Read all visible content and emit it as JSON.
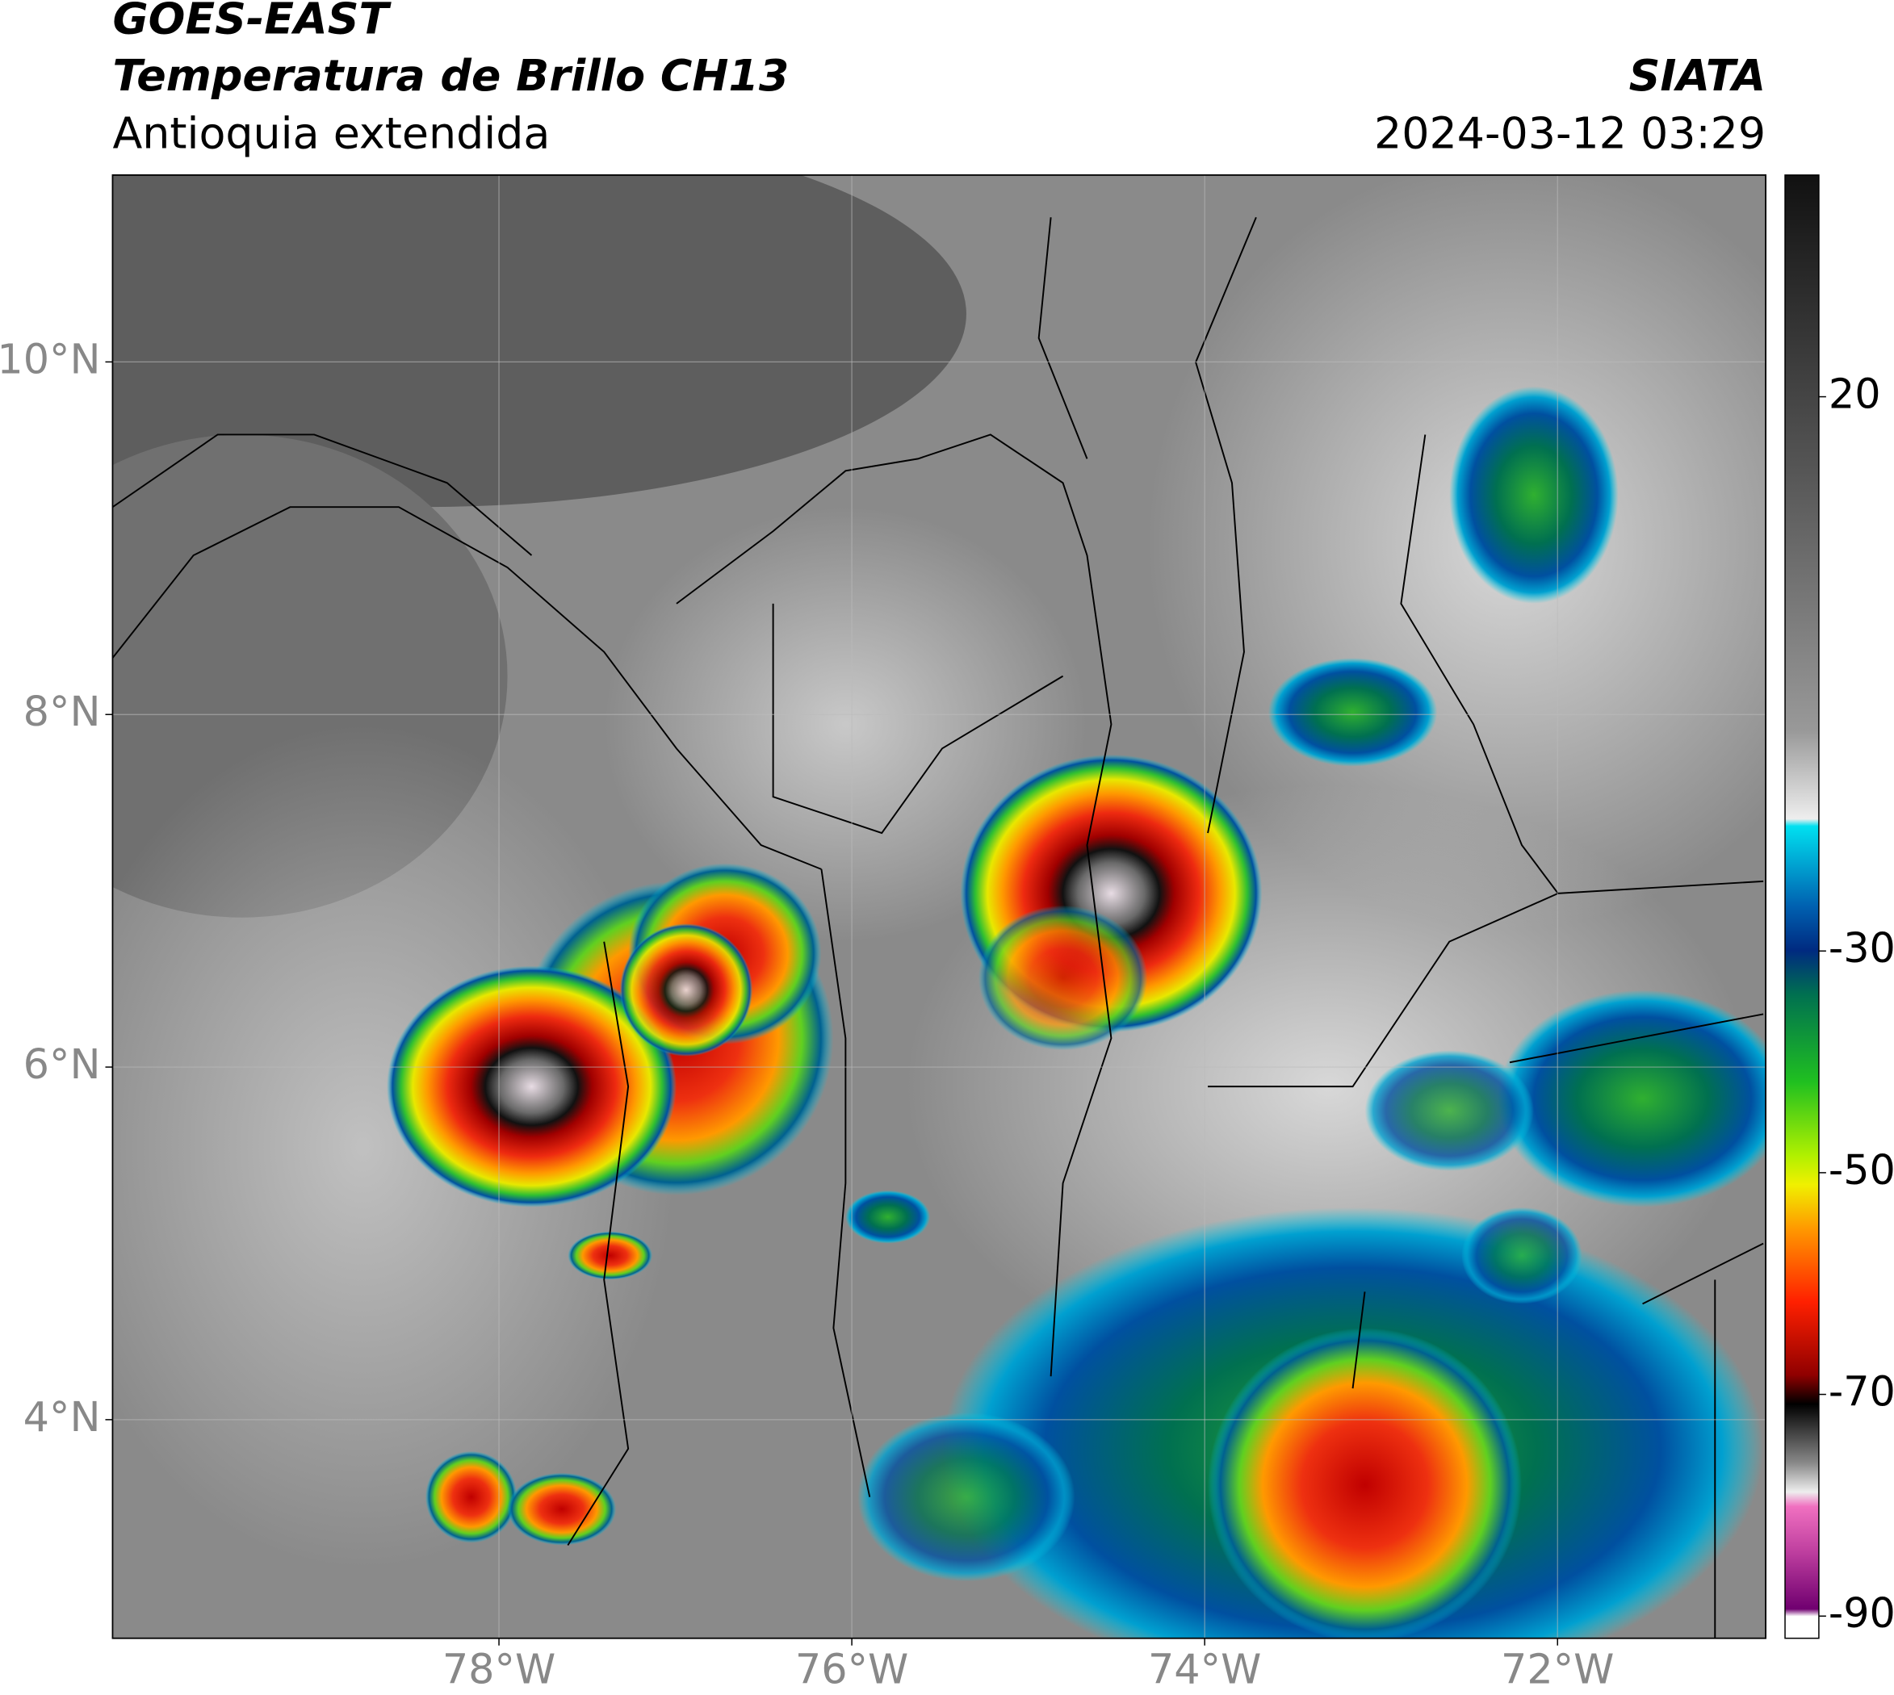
{
  "header": {
    "satellite": "GOES-EAST",
    "product": "Temperatura de Brillo CH13",
    "region": "Antioquia extendida",
    "agency": "SIATA",
    "datetime": "2024-03-12 03:29"
  },
  "map": {
    "lonlim": [
      -80.19,
      -70.82
    ],
    "latlim": [
      2.76,
      11.06
    ],
    "lon_ticks": [
      {
        "value": -78,
        "label": "78°W"
      },
      {
        "value": -76,
        "label": "76°W"
      },
      {
        "value": -74,
        "label": "74°W"
      },
      {
        "value": -72,
        "label": "72°W"
      }
    ],
    "lat_ticks": [
      {
        "value": 10,
        "label": "10°N"
      },
      {
        "value": 8,
        "label": "8°N"
      },
      {
        "value": 6,
        "label": "6°N"
      },
      {
        "value": 4,
        "label": "4°N"
      }
    ]
  },
  "colorbar": {
    "lim": [
      -92,
      40
    ],
    "ticks": [
      20,
      -30,
      -50,
      -70,
      -90
    ]
  }
}
